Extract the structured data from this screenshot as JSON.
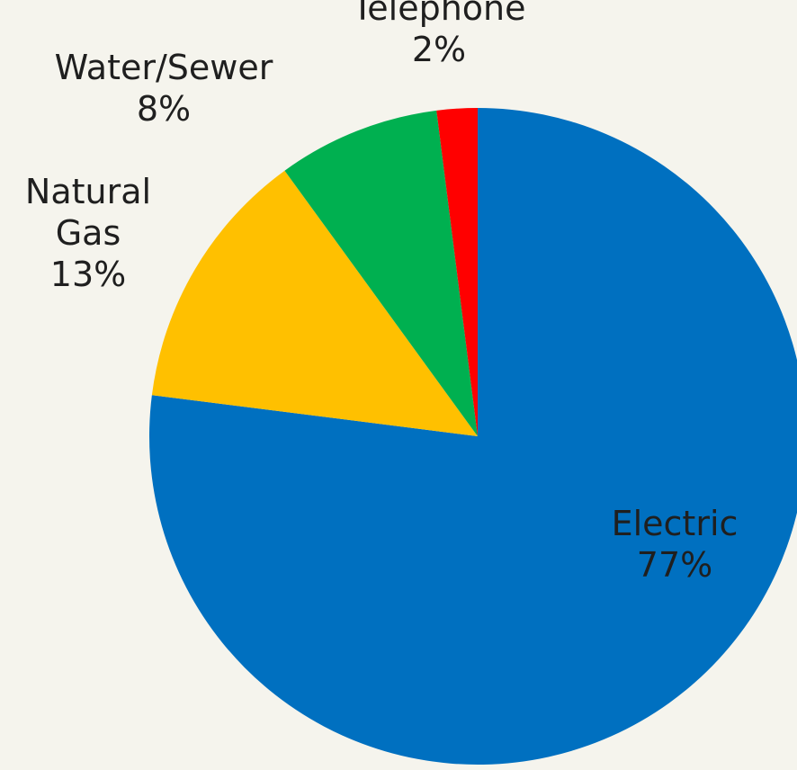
{
  "chart_data": {
    "type": "pie",
    "categories": [
      "Electric",
      "Natural Gas",
      "Water/Sewer",
      "Telephone"
    ],
    "values": [
      77,
      13,
      8,
      2
    ],
    "label_lines": [
      [
        "Electric",
        "77%"
      ],
      [
        "Natural",
        "Gas",
        "13%"
      ],
      [
        "Water/Sewer",
        "8%"
      ],
      [
        "Telephone",
        "2%"
      ]
    ],
    "colors": [
      "#0070c0",
      "#ffc000",
      "#00b050",
      "#ff0000"
    ],
    "start_angle": "12 o'clock",
    "direction": "clockwise",
    "legend": "none"
  }
}
